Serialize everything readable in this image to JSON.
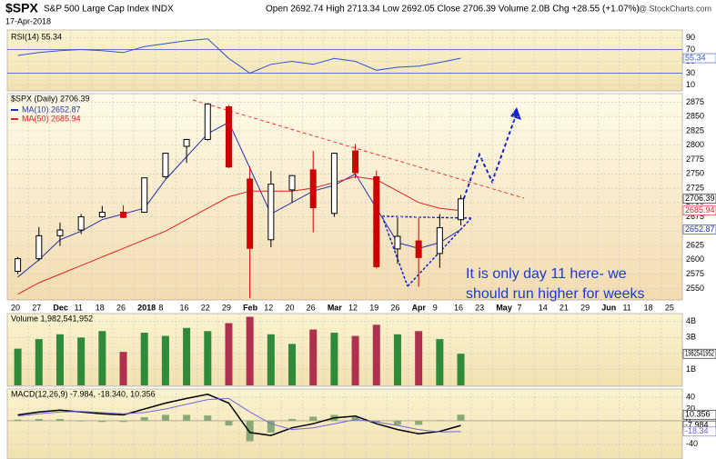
{
  "header": {
    "symbol": "$SPX",
    "name": "S&P 500 Large Cap Index INDX",
    "quote": "Open 2692.74  High 2713.34  Low 2692.05  Close 2706.39  Volume 2.0B  Chg +28.55 (+1.07%)",
    "date": "17-Apr-2018",
    "credit": "@ StockCharts.com"
  },
  "chart_data": [
    {
      "type": "rsi",
      "legend": "RSI(14) 55.34",
      "color": "#3355cc",
      "ylim": [
        0,
        100
      ],
      "yticks": [
        10,
        30,
        50,
        70,
        90
      ],
      "levels": [
        30,
        70
      ],
      "values": [
        60,
        65,
        68,
        70,
        68,
        65,
        75,
        80,
        85,
        88,
        55,
        30,
        45,
        50,
        45,
        55,
        50,
        35,
        40,
        42,
        48,
        55.34
      ]
    },
    {
      "type": "candlestick",
      "legend": "$SPX (Daily) 2706.39",
      "up_color": "#000000",
      "down_color": "#cc0000",
      "categories": [
        "20",
        "27",
        "Dec",
        "11",
        "18",
        "26",
        "2018",
        "8",
        "16",
        "22",
        "29",
        "Feb",
        "12",
        "20",
        "26",
        "Mar",
        "12",
        "19",
        "26",
        "Apr",
        "9",
        "16",
        "23",
        "May",
        "7",
        "14",
        "21",
        "29",
        "Jun",
        "11",
        "18",
        "25"
      ],
      "open": [
        2580,
        2602,
        2642,
        2652,
        2675,
        2683,
        2683,
        2745,
        2798,
        2810,
        2867,
        2741,
        2635,
        2722,
        2757,
        2681,
        2790,
        2745,
        2619,
        2633,
        2611,
        2670,
        null,
        null,
        null,
        null,
        null,
        null,
        null,
        null,
        null,
        null
      ],
      "high": [
        2605,
        2657,
        2665,
        2680,
        2694,
        2695,
        2743,
        2787,
        2811,
        2873,
        2870,
        2763,
        2755,
        2747,
        2790,
        2787,
        2802,
        2756,
        2674,
        2673,
        2680,
        2713.34,
        null,
        null,
        null,
        null,
        null,
        null,
        null,
        null,
        null,
        null
      ],
      "low": [
        2575,
        2598,
        2624,
        2645,
        2673,
        2673,
        2683,
        2742,
        2769,
        2808,
        2760,
        2533,
        2622,
        2700,
        2648,
        2675,
        2742,
        2585,
        2593,
        2553,
        2586,
        2660,
        null,
        null,
        null,
        null,
        null,
        null,
        null,
        null,
        null,
        null
      ],
      "close": [
        2602,
        2642,
        2652,
        2675,
        2683,
        2674,
        2743,
        2786,
        2810,
        2872,
        2762,
        2620,
        2732,
        2747,
        2691,
        2786,
        2752,
        2588,
        2641,
        2604,
        2656,
        2706.39,
        null,
        null,
        null,
        null,
        null,
        null,
        null,
        null,
        null,
        null
      ],
      "series": [
        {
          "name": "MA(10) 2652.87",
          "color": "#2233aa",
          "values": [
            2570,
            2600,
            2635,
            2650,
            2670,
            2680,
            2690,
            2740,
            2780,
            2820,
            2840,
            2760,
            2680,
            2700,
            2720,
            2730,
            2750,
            2690,
            2630,
            2620,
            2630,
            2652.87,
            null,
            null,
            null,
            null,
            null,
            null,
            null,
            null,
            null,
            null
          ]
        },
        {
          "name": "MA(50) 2685.94",
          "color": "#dd2222",
          "values": [
            2540,
            2560,
            2575,
            2590,
            2605,
            2620,
            2635,
            2650,
            2670,
            2690,
            2710,
            2720,
            2720,
            2720,
            2725,
            2735,
            2745,
            2740,
            2720,
            2700,
            2690,
            2685.94,
            null,
            null,
            null,
            null,
            null,
            null,
            null,
            null,
            null,
            null
          ]
        }
      ],
      "ylim": [
        2530,
        2890
      ],
      "yticks": [
        2550,
        2575,
        2600,
        2625,
        2650,
        2675,
        2700,
        2725,
        2750,
        2775,
        2800,
        2825,
        2850,
        2875
      ],
      "annotations": [
        "It is only day 11 here- we",
        "should run higher for weeks"
      ]
    },
    {
      "type": "volume",
      "legend": "Volume 1,982,541,952",
      "current_label": "1982541952",
      "up_color": "#2f8a3a",
      "down_color": "#b03050",
      "ylim": [
        0,
        4.5
      ],
      "yticks": [
        {
          "value": 1,
          "label": "1B"
        },
        {
          "value": 2,
          "label": "2B"
        },
        {
          "value": 3,
          "label": "3B"
        },
        {
          "value": 4,
          "label": "4B"
        }
      ],
      "values": [
        2.3,
        2.9,
        3.2,
        3.0,
        3.4,
        2.1,
        3.3,
        3.1,
        3.6,
        3.4,
        3.9,
        4.3,
        3.2,
        2.6,
        3.5,
        3.3,
        3.1,
        3.8,
        3.2,
        3.4,
        2.9,
        1.982541952
      ]
    },
    {
      "type": "macd",
      "legend": "MACD(12,26,9) -7.984, -18.340, 10.356",
      "ylim": [
        -65,
        54
      ],
      "yticks": [
        -40,
        -20,
        0,
        20,
        40
      ],
      "series": [
        {
          "name": "MACD",
          "color": "#000000",
          "values": [
            10,
            15,
            18,
            15,
            12,
            10,
            20,
            30,
            38,
            45,
            30,
            -20,
            -25,
            -12,
            -5,
            5,
            8,
            -5,
            -15,
            -22,
            -18,
            -7.984
          ]
        },
        {
          "name": "Signal",
          "color": "#7766dd",
          "values": [
            8,
            12,
            15,
            16,
            14,
            12,
            14,
            20,
            28,
            36,
            38,
            15,
            -5,
            -15,
            -12,
            -5,
            2,
            -2,
            -8,
            -15,
            -19,
            -18.34
          ]
        },
        {
          "name": "Histogram",
          "color": "#88aa77",
          "values": [
            2,
            3,
            3,
            -1,
            -2,
            -2,
            6,
            10,
            10,
            9,
            -8,
            -35,
            -20,
            3,
            7,
            10,
            6,
            -3,
            -7,
            -7,
            1,
            10.356
          ]
        }
      ]
    }
  ]
}
